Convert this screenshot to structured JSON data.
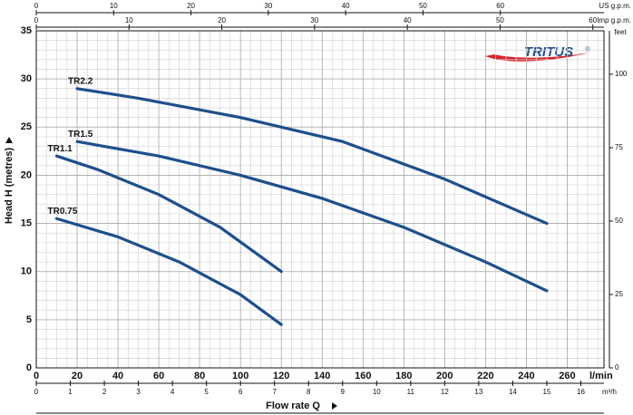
{
  "chart_data": {
    "type": "line",
    "y_label": "Head H  (metres)",
    "x_label": "Flow rate  Q",
    "x_unit": "l/min",
    "xlim": [
      0,
      278
    ],
    "xticks": [
      0,
      20,
      40,
      60,
      80,
      100,
      120,
      140,
      160,
      180,
      200,
      220,
      240,
      260
    ],
    "ylim": [
      0,
      35
    ],
    "yticks": [
      0,
      5,
      10,
      15,
      20,
      25,
      30,
      35
    ],
    "grid": true,
    "grid_step_x": 5,
    "grid_step_y": 1,
    "color": "#1d4f8c",
    "series": [
      {
        "name": "TR2.2",
        "x": [
          20,
          50,
          100,
          150,
          200,
          250
        ],
        "values": [
          29,
          28,
          26,
          23.5,
          19.6,
          15
        ]
      },
      {
        "name": "TR1.5",
        "x": [
          20,
          60,
          100,
          140,
          180,
          220,
          250
        ],
        "values": [
          23.5,
          22,
          20,
          17.6,
          14.6,
          11,
          8
        ]
      },
      {
        "name": "TR1.1",
        "x": [
          10,
          30,
          60,
          90,
          120
        ],
        "values": [
          22,
          20.6,
          18,
          14.6,
          10
        ]
      },
      {
        "name": "TR0.75",
        "x": [
          10,
          40,
          70,
          100,
          120
        ],
        "values": [
          15.5,
          13.6,
          11,
          7.6,
          4.5
        ]
      }
    ],
    "top_axes": [
      {
        "label": "US g.p.m.",
        "lim": [
          0,
          73.4
        ],
        "ticks": [
          0,
          10,
          20,
          30,
          40,
          50,
          60
        ]
      },
      {
        "label": "Imp g.p.m.",
        "lim": [
          0,
          61.2
        ],
        "ticks": [
          0,
          10,
          20,
          30,
          40,
          50,
          60
        ]
      }
    ],
    "bottom_axis2": {
      "label": "m³/h",
      "lim": [
        0,
        16.68
      ],
      "ticks": [
        0,
        1,
        2,
        3,
        4,
        5,
        6,
        7,
        8,
        9,
        10,
        11,
        12,
        13,
        14,
        15,
        16
      ]
    },
    "y2": {
      "label": "feet",
      "lim": [
        0,
        114.8
      ],
      "ticks": [
        0,
        25,
        50,
        75,
        100
      ]
    },
    "logo": "TRITUS",
    "logo_mark": "®"
  }
}
